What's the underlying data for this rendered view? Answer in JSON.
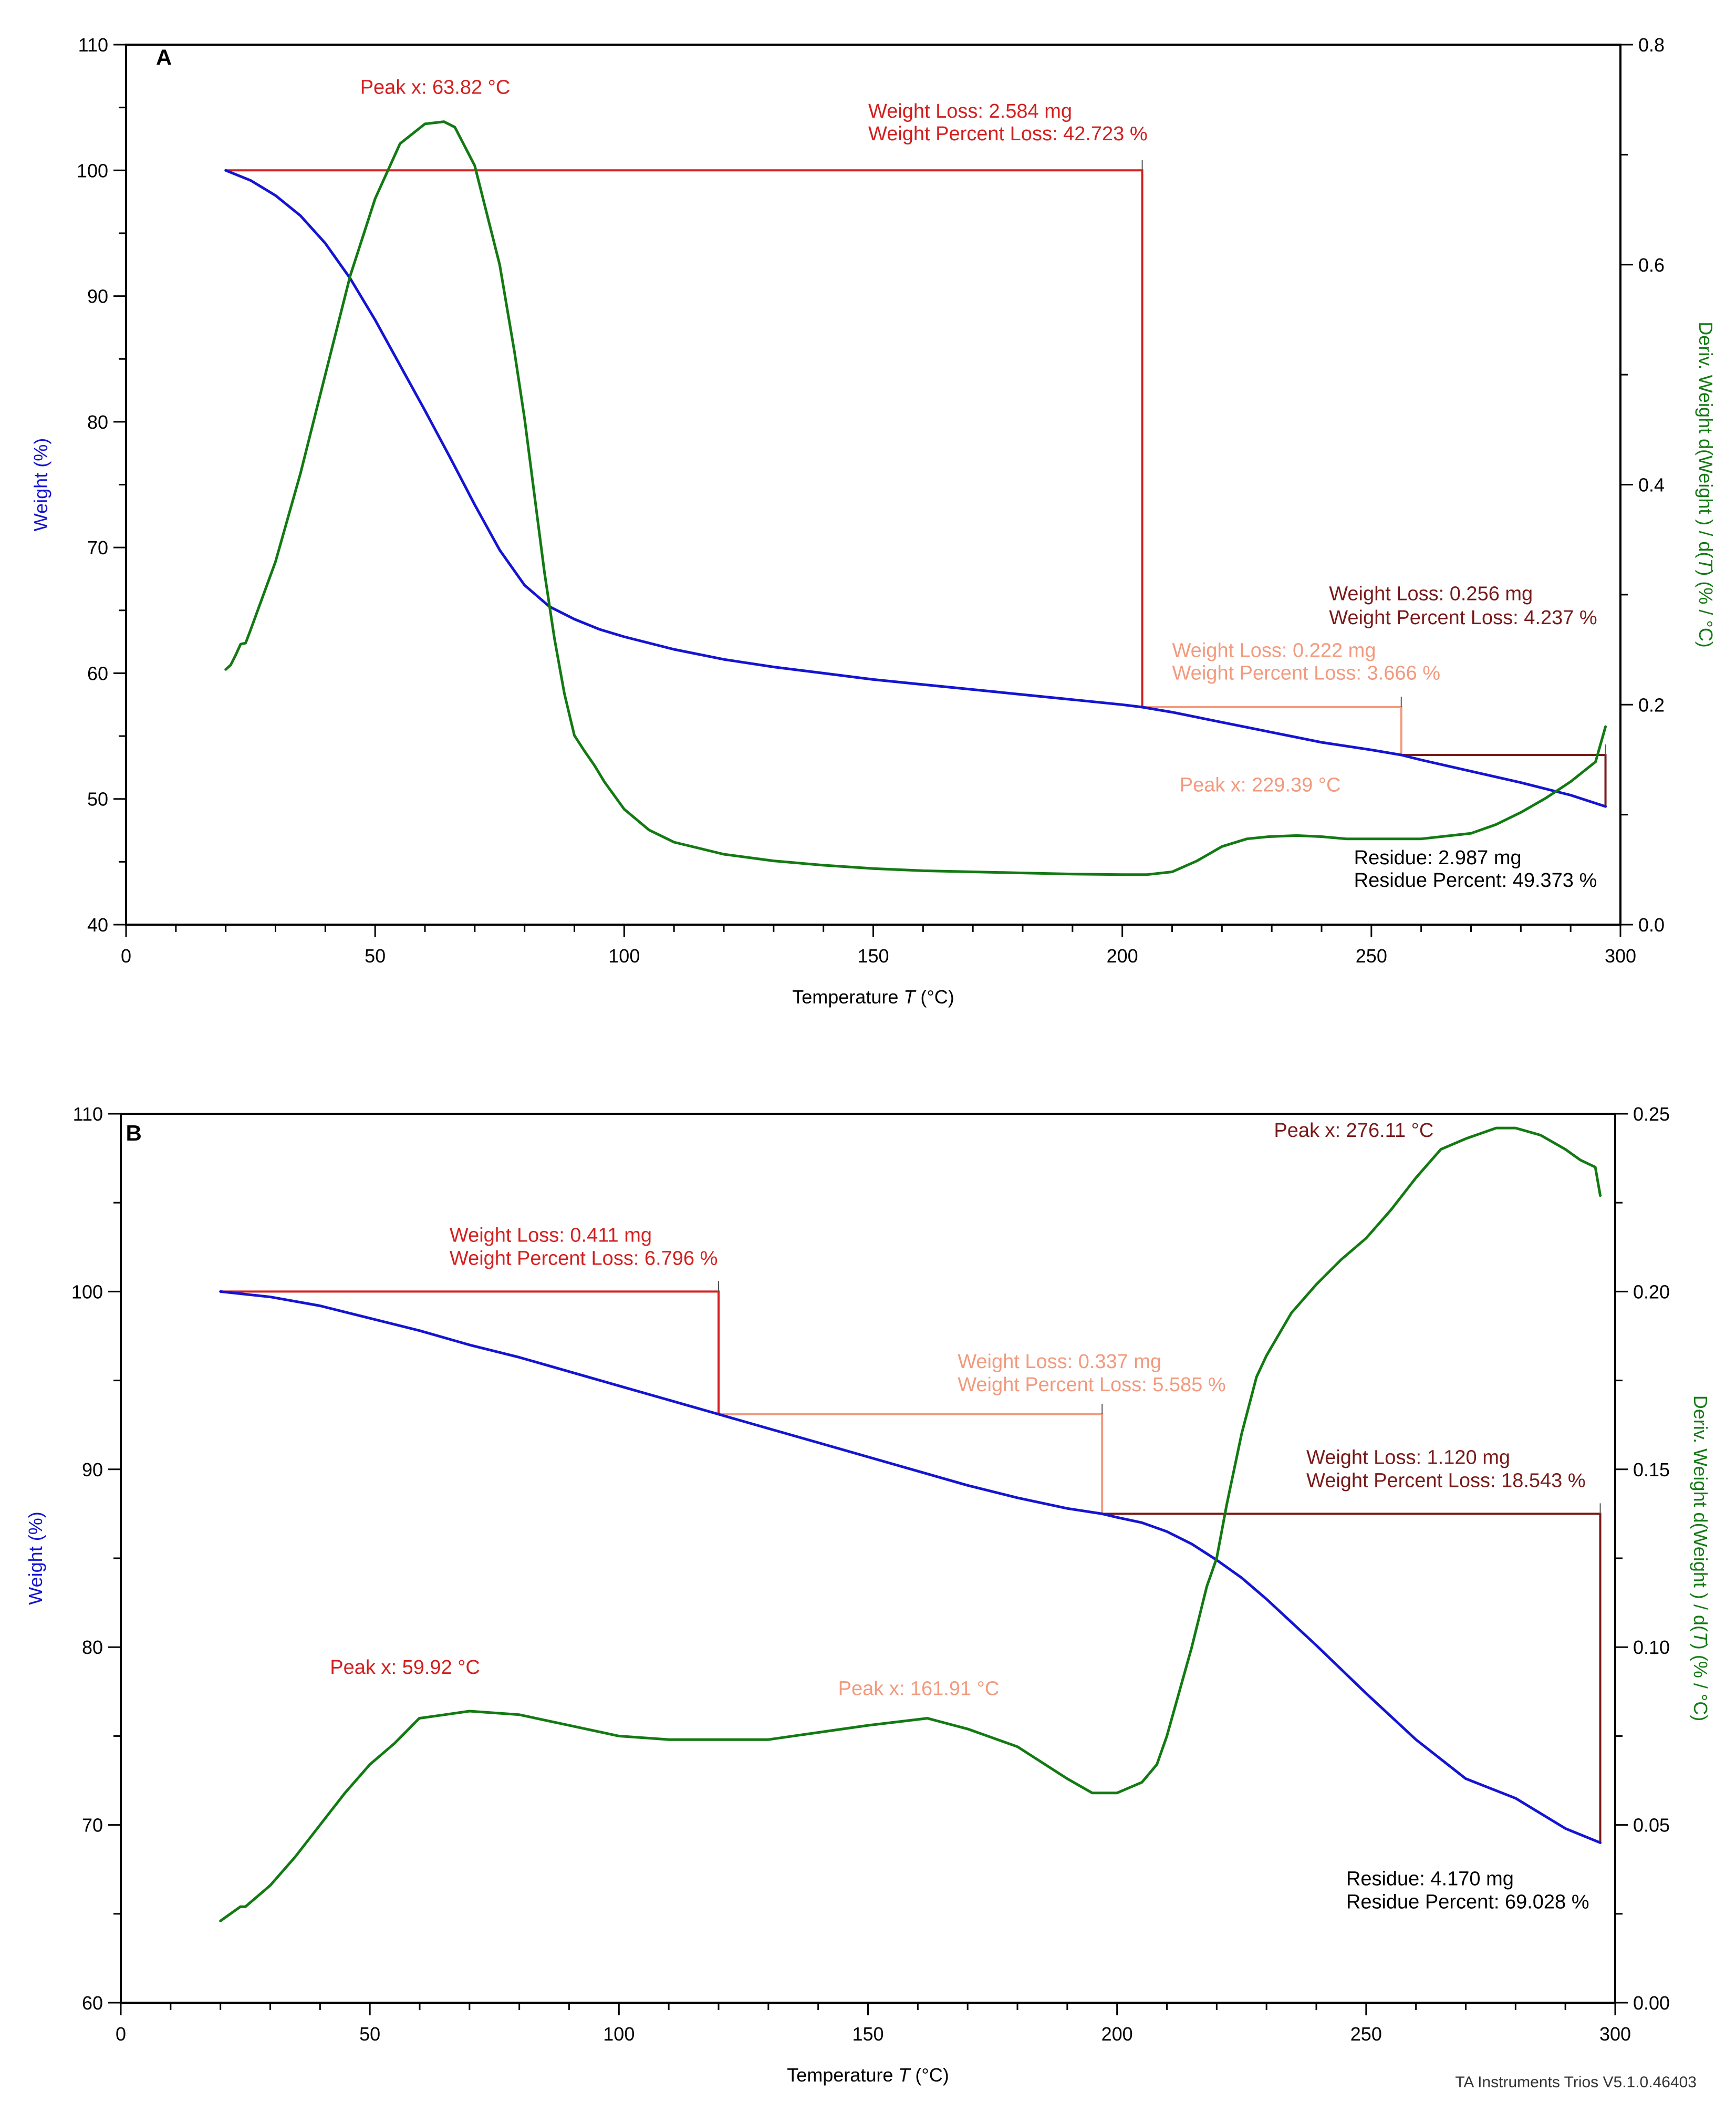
{
  "chart_data": [
    {
      "panel": "A",
      "type": "line",
      "xlabel": "Temperature T (°C)",
      "ylabel": "Weight (%)",
      "y2label": "Deriv. Weight d(Weight ) / d(T) (% / °C)",
      "xlim": [
        0,
        300
      ],
      "ylim": [
        40,
        110
      ],
      "y2lim": [
        0,
        0.8
      ],
      "xticks": [
        "0",
        "50",
        "100",
        "150",
        "200",
        "250",
        "300"
      ],
      "yticks": [
        "40",
        "50",
        "60",
        "70",
        "80",
        "90",
        "100",
        "110"
      ],
      "y2ticks": [
        "0.0",
        "0.2",
        "0.4",
        "0.6",
        "0.8"
      ],
      "series": [
        {
          "name": "Weight",
          "axis": "left",
          "color": "#1414d2",
          "x": [
            20,
            25,
            30,
            35,
            40,
            45,
            50,
            55,
            60,
            65,
            70,
            75,
            80,
            85,
            90,
            95,
            100,
            110,
            120,
            130,
            140,
            150,
            160,
            170,
            180,
            190,
            200,
            204,
            210,
            220,
            230,
            240,
            250,
            256,
            260,
            270,
            280,
            290,
            297
          ],
          "y": [
            100,
            99.2,
            98,
            96.4,
            94.2,
            91.4,
            88.1,
            84.5,
            80.9,
            77.2,
            73.4,
            69.8,
            67,
            65.3,
            64.3,
            63.5,
            62.9,
            61.9,
            61.1,
            60.5,
            60,
            59.5,
            59.1,
            58.7,
            58.3,
            57.9,
            57.5,
            57.3,
            56.9,
            56.1,
            55.3,
            54.5,
            53.9,
            53.5,
            53.1,
            52.2,
            51.3,
            50.3,
            49.4
          ]
        },
        {
          "name": "Deriv. Weight",
          "axis": "right",
          "color": "#137a13",
          "x": [
            20,
            21,
            22,
            23,
            24,
            25,
            30,
            35,
            40,
            45,
            50,
            55,
            60,
            63.82,
            66,
            70,
            75,
            78,
            80,
            82,
            84,
            86,
            88,
            90,
            92,
            94,
            96,
            100,
            105,
            110,
            120,
            130,
            140,
            150,
            160,
            170,
            180,
            190,
            200,
            205,
            210,
            215,
            220,
            225,
            229.39,
            235,
            240,
            245,
            250,
            260,
            270,
            275,
            280,
            285,
            290,
            295,
            297
          ],
          "y": [
            0.232,
            0.236,
            0.245,
            0.255,
            0.256,
            0.268,
            0.33,
            0.41,
            0.5,
            0.59,
            0.66,
            0.71,
            0.728,
            0.73,
            0.725,
            0.69,
            0.6,
            0.52,
            0.46,
            0.39,
            0.32,
            0.26,
            0.21,
            0.172,
            0.158,
            0.145,
            0.13,
            0.105,
            0.086,
            0.075,
            0.064,
            0.058,
            0.054,
            0.051,
            0.049,
            0.048,
            0.047,
            0.046,
            0.0455,
            0.0455,
            0.048,
            0.058,
            0.071,
            0.078,
            0.08,
            0.081,
            0.08,
            0.078,
            0.078,
            0.078,
            0.083,
            0.091,
            0.102,
            0.115,
            0.13,
            0.148,
            0.18
          ]
        }
      ],
      "steps": [
        {
          "x1": 20,
          "x2": 204,
          "y1": 100,
          "y2": 57.3,
          "color": "#d41f1f"
        },
        {
          "x1": 204,
          "x2": 256,
          "y1": 57.3,
          "y2": 53.5,
          "color": "#f29a7e"
        },
        {
          "x1": 256,
          "x2": 297,
          "y1": 53.5,
          "y2": 49.4,
          "color": "#7a1a1a"
        }
      ],
      "annotations": [
        {
          "text": "A",
          "x": 6,
          "y": 108.4,
          "color": "#000000",
          "bold": true,
          "anchor": "start"
        },
        {
          "text": "Peak x: 63.82 °C",
          "x": 47,
          "y": 106.1,
          "color": "#d41f1f",
          "anchor": "start"
        },
        {
          "text": "Weight Loss: 2.584 mg",
          "x": 149,
          "y": 104.2,
          "color": "#d41f1f",
          "anchor": "start"
        },
        {
          "text": "Weight Percent Loss: 42.723 %",
          "x": 149,
          "y": 102.4,
          "color": "#d41f1f",
          "anchor": "start"
        },
        {
          "text": "Weight Loss: 0.256 mg",
          "x": 241.5,
          "y": 65.8,
          "color": "#7a1a1a",
          "anchor": "start"
        },
        {
          "text": "Weight Percent Loss: 4.237 %",
          "x": 241.5,
          "y": 63.9,
          "color": "#7a1a1a",
          "anchor": "start"
        },
        {
          "text": "Weight Loss: 0.222 mg",
          "x": 210,
          "y": 61.3,
          "color": "#f29a7e",
          "anchor": "start"
        },
        {
          "text": "Weight Percent Loss: 3.666 %",
          "x": 210,
          "y": 59.5,
          "color": "#f29a7e",
          "anchor": "start"
        },
        {
          "text": "Peak x: 229.39 °C",
          "x": 211.5,
          "y": 50.6,
          "color": "#f29a7e",
          "anchor": "start"
        },
        {
          "text": "Residue: 2.987 mg",
          "x": 246.5,
          "y": 44.8,
          "color": "#000000",
          "anchor": "start"
        },
        {
          "text": "Residue Percent: 49.373 %",
          "x": 246.5,
          "y": 43,
          "color": "#000000",
          "anchor": "start"
        }
      ]
    },
    {
      "panel": "B",
      "type": "line",
      "xlabel": "Temperature T (°C)",
      "ylabel": "Weight (%)",
      "y2label": "Deriv. Weight d(Weight ) / d(T) (% / °C)",
      "xlim": [
        0,
        300
      ],
      "ylim": [
        60,
        110
      ],
      "y2lim": [
        0,
        0.25
      ],
      "xticks": [
        "0",
        "50",
        "100",
        "150",
        "200",
        "250",
        "300"
      ],
      "yticks": [
        "60",
        "70",
        "80",
        "90",
        "100",
        "110"
      ],
      "y2ticks": [
        "0.00",
        "0.05",
        "0.10",
        "0.15",
        "0.20",
        "0.25"
      ],
      "series": [
        {
          "name": "Weight",
          "axis": "left",
          "color": "#1414d2",
          "x": [
            20,
            30,
            40,
            50,
            60,
            70,
            80,
            90,
            100,
            110,
            120,
            130,
            140,
            150,
            160,
            170,
            180,
            190,
            197,
            200,
            205,
            210,
            215,
            220,
            225,
            230,
            240,
            250,
            260,
            270,
            280,
            290,
            297
          ],
          "y": [
            100,
            99.7,
            99.2,
            98.5,
            97.8,
            97,
            96.3,
            95.5,
            94.7,
            93.9,
            93.1,
            92.3,
            91.5,
            90.7,
            89.9,
            89.1,
            88.4,
            87.8,
            87.5,
            87.3,
            87,
            86.5,
            85.8,
            84.9,
            83.9,
            82.7,
            80.1,
            77.4,
            74.8,
            72.6,
            71.5,
            69.8,
            69
          ]
        },
        {
          "name": "Deriv. Weight",
          "axis": "right",
          "color": "#137a13",
          "x": [
            20,
            22,
            24,
            25,
            30,
            35,
            40,
            45,
            50,
            55,
            59.92,
            65,
            70,
            80,
            90,
            100,
            110,
            120,
            130,
            140,
            150,
            161.91,
            170,
            180,
            190,
            195,
            200,
            205,
            208,
            210,
            212,
            215,
            218,
            220,
            222,
            225,
            228,
            230,
            235,
            240,
            245,
            250,
            255,
            260,
            265,
            270,
            276.11,
            280,
            285,
            290,
            293,
            296,
            297
          ],
          "y": [
            0.023,
            0.025,
            0.027,
            0.027,
            0.033,
            0.041,
            0.05,
            0.059,
            0.067,
            0.073,
            0.08,
            0.081,
            0.082,
            0.081,
            0.078,
            0.075,
            0.074,
            0.074,
            0.074,
            0.076,
            0.078,
            0.08,
            0.077,
            0.072,
            0.063,
            0.059,
            0.059,
            0.062,
            0.067,
            0.075,
            0.085,
            0.1,
            0.117,
            0.125,
            0.14,
            0.16,
            0.176,
            0.182,
            0.194,
            0.202,
            0.209,
            0.215,
            0.223,
            0.232,
            0.24,
            0.243,
            0.246,
            0.246,
            0.244,
            0.24,
            0.237,
            0.235,
            0.227
          ]
        }
      ],
      "steps": [
        {
          "x1": 20,
          "x2": 120,
          "y1": 100,
          "y2": 93.1,
          "color": "#d41f1f"
        },
        {
          "x1": 120,
          "x2": 197,
          "y1": 93.1,
          "y2": 87.5,
          "color": "#f29a7e"
        },
        {
          "x1": 197,
          "x2": 297,
          "y1": 87.5,
          "y2": 69,
          "color": "#7a1a1a"
        }
      ],
      "annotations": [
        {
          "text": "B",
          "x": 1,
          "y": 108.5,
          "color": "#000000",
          "bold": true,
          "anchor": "start"
        },
        {
          "text": "Peak x: 276.11 °C",
          "x": 231.5,
          "y": 108.7,
          "color": "#7a1a1a",
          "anchor": "start"
        },
        {
          "text": "Weight Loss: 0.411 mg",
          "x": 66,
          "y": 102.8,
          "color": "#d41f1f",
          "anchor": "start"
        },
        {
          "text": "Weight Percent Loss: 6.796 %",
          "x": 66,
          "y": 101.5,
          "color": "#d41f1f",
          "anchor": "start"
        },
        {
          "text": "Weight Loss: 0.337 mg",
          "x": 168,
          "y": 95.7,
          "color": "#f29a7e",
          "anchor": "start"
        },
        {
          "text": "Weight Percent Loss: 5.585 %",
          "x": 168,
          "y": 94.4,
          "color": "#f29a7e",
          "anchor": "start"
        },
        {
          "text": "Weight Loss: 1.120 mg",
          "x": 238,
          "y": 90.3,
          "color": "#7a1a1a",
          "anchor": "start"
        },
        {
          "text": "Weight Percent Loss: 18.543 %",
          "x": 238,
          "y": 89,
          "color": "#7a1a1a",
          "anchor": "start"
        },
        {
          "text": "Peak x: 59.92 °C",
          "x": 42,
          "y": 78.5,
          "color": "#d41f1f",
          "anchor": "start"
        },
        {
          "text": "Peak x: 161.91 °C",
          "x": 144,
          "y": 77.3,
          "color": "#f29a7e",
          "anchor": "start"
        },
        {
          "text": "Residue: 4.170 mg",
          "x": 246,
          "y": 66.6,
          "color": "#000000",
          "anchor": "start"
        },
        {
          "text": "Residue Percent: 69.028 %",
          "x": 246,
          "y": 65.3,
          "color": "#000000",
          "anchor": "start"
        }
      ]
    }
  ],
  "footer": "TA Instruments Trios V5.1.0.46403"
}
